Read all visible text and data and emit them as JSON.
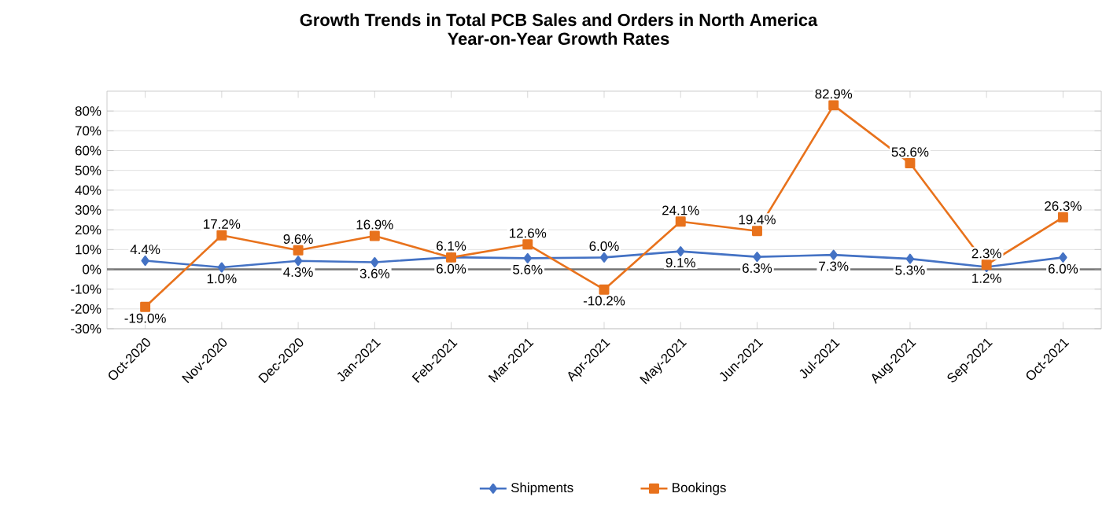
{
  "chart_data": {
    "type": "line",
    "title": "Growth Trends in Total PCB Sales and Orders in North America",
    "subtitle": "Year-on-Year Growth Rates",
    "categories": [
      "Oct-2020",
      "Nov-2020",
      "Dec-2020",
      "Jan-2021",
      "Feb-2021",
      "Mar-2021",
      "Apr-2021",
      "May-2021",
      "Jun-2021",
      "Jul-2021",
      "Aug-2021",
      "Sep-2021",
      "Oct-2021"
    ],
    "series": [
      {
        "name": "Shipments",
        "color": "#4472c4",
        "marker": "diamond",
        "values": [
          4.4,
          1.0,
          4.3,
          3.6,
          6.1,
          5.6,
          6.0,
          9.1,
          6.3,
          7.3,
          5.3,
          1.2,
          6.0
        ],
        "value_labels": [
          "4.4%",
          "1.0%",
          "4.3%",
          "3.6%",
          "6.1%",
          "5.6%",
          "6.0%",
          "9.1%",
          "6.3%",
          "7.3%",
          "5.3%",
          "1.2%",
          "6.0%"
        ]
      },
      {
        "name": "Bookings",
        "color": "#e8721c",
        "marker": "square",
        "values": [
          -19.0,
          17.2,
          9.6,
          16.9,
          6.0,
          12.6,
          -10.2,
          24.1,
          19.4,
          82.9,
          53.6,
          2.3,
          26.3
        ],
        "value_labels": [
          "-19.0%",
          "17.2%",
          "9.6%",
          "16.9%",
          "6.0%",
          "12.6%",
          "-10.2%",
          "24.1%",
          "19.4%",
          "82.9%",
          "53.6%",
          "2.3%",
          "26.3%"
        ]
      }
    ],
    "ylim": [
      -30,
      90
    ],
    "yticks": [
      {
        "value": -30,
        "label": "-30%"
      },
      {
        "value": -20,
        "label": "-20%"
      },
      {
        "value": -10,
        "label": "-10%"
      },
      {
        "value": 0,
        "label": "0%"
      },
      {
        "value": 10,
        "label": "10%"
      },
      {
        "value": 20,
        "label": "20%"
      },
      {
        "value": 30,
        "label": "30%"
      },
      {
        "value": 40,
        "label": "40%"
      },
      {
        "value": 50,
        "label": "50%"
      },
      {
        "value": 60,
        "label": "60%"
      },
      {
        "value": 70,
        "label": "70%"
      },
      {
        "value": 80,
        "label": "80%"
      }
    ],
    "grid": "y",
    "legend": "bottom"
  }
}
